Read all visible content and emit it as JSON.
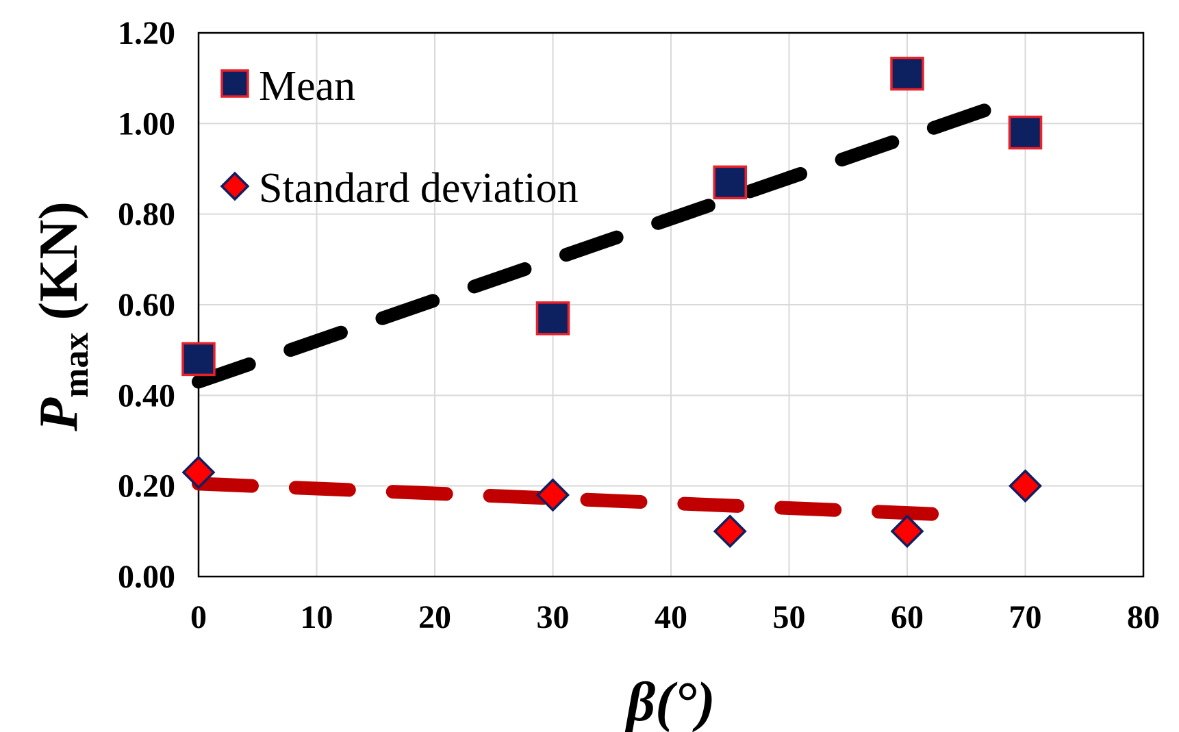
{
  "chart_data": {
    "type": "scatter",
    "title": "",
    "xlabel": "β(°)",
    "ylabel": {
      "symbol": "P",
      "subscript": "max",
      "unit": "(KN)"
    },
    "xlim": [
      0,
      80
    ],
    "ylim": [
      0,
      1.2
    ],
    "x_ticks": [
      0,
      10,
      20,
      30,
      40,
      50,
      60,
      70,
      80
    ],
    "x_tick_labels": [
      "0",
      "10",
      "20",
      "30",
      "40",
      "50",
      "60",
      "70",
      "80"
    ],
    "y_ticks": [
      0,
      0.2,
      0.4,
      0.6,
      0.8,
      1.0,
      1.2
    ],
    "y_tick_labels": [
      "0.00",
      "0.20",
      "0.40",
      "0.60",
      "0.80",
      "1.00",
      "1.20"
    ],
    "grid": true,
    "legend_position": "top-left",
    "series": [
      {
        "name": "Mean",
        "marker": "square",
        "fill": "#0d2060",
        "edge": "#e8212a",
        "x": [
          0,
          30,
          45,
          60,
          70
        ],
        "y": [
          0.48,
          0.57,
          0.87,
          1.11,
          0.98
        ],
        "trendline": {
          "style": "dashed",
          "color": "#000000",
          "from": [
            0,
            0.43
          ],
          "to": [
            70,
            1.06
          ]
        }
      },
      {
        "name": "Standard deviation",
        "marker": "diamond",
        "fill": "#ff0000",
        "edge": "#0d2060",
        "x": [
          0,
          30,
          45,
          60,
          70
        ],
        "y": [
          0.23,
          0.18,
          0.1,
          0.1,
          0.2
        ],
        "trendline": {
          "style": "dashed",
          "color": "#c00000",
          "from": [
            0,
            0.205
          ],
          "to": [
            65,
            0.135
          ]
        }
      }
    ]
  }
}
